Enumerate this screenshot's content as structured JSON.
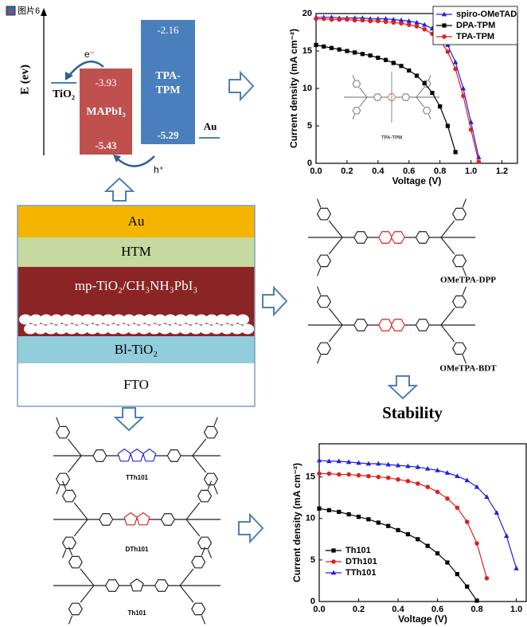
{
  "energy_diagram": {
    "icon_label": "图片6",
    "axis_label": "E (ev)",
    "electron": "e⁻",
    "hole": "h⁺",
    "tio2": "TiO₂",
    "mapbi3": {
      "name": "MAPbI₃",
      "lumo": "-3.93",
      "homo": "-5.43"
    },
    "tpa_tpm": {
      "name_line1": "TPA-",
      "name_line2": "TPM",
      "lumo": "-2.16",
      "homo": "-5.29"
    },
    "au": "Au"
  },
  "device_stack": {
    "layers": [
      "Au",
      "HTM",
      "mp-TiO₂/CH₃NH₃PbI₃",
      "Bl-TiO₂",
      "FTO"
    ]
  },
  "molecules": {
    "inset": "TPA-TPM",
    "top_right": [
      "OMeTPA-DPP",
      "OMeTPA-BDT"
    ],
    "bottom_left": [
      "TTh101",
      "DTh101",
      "Th101"
    ]
  },
  "stability": "Stability",
  "chart_data": [
    {
      "type": "line",
      "xlabel": "Voltage (V)",
      "ylabel": "Current density (mA cm⁻²)",
      "x": [
        0,
        0.05,
        0.1,
        0.15,
        0.2,
        0.25,
        0.3,
        0.35,
        0.4,
        0.45,
        0.5,
        0.55,
        0.6,
        0.65,
        0.7,
        0.75,
        0.8,
        0.85,
        0.9,
        0.95,
        1.0,
        1.05
      ],
      "xlim": [
        0,
        1.3
      ],
      "ylim": [
        0,
        20
      ],
      "xticks": [
        {
          "value": 0,
          "label": "0.0"
        },
        0.2,
        0.4,
        0.6,
        0.8,
        {
          "value": 1,
          "label": "1.0"
        },
        1.2
      ],
      "yticks": [
        0,
        5,
        10,
        15,
        20
      ],
      "legend": "upper right",
      "series": [
        {
          "name": "spiro-OMeTAD",
          "color": "#1f1fe0",
          "marker": "triangle",
          "values": [
            19.5,
            19.5,
            19.5,
            19.4,
            19.4,
            19.4,
            19.4,
            19.3,
            19.3,
            19.3,
            19.2,
            19.1,
            19.0,
            18.8,
            18.5,
            18.0,
            17.2,
            15.8,
            13.5,
            10.0,
            5.5,
            0.8
          ]
        },
        {
          "name": "DPA-TPM",
          "color": "#000000",
          "marker": "square",
          "values": [
            15.8,
            15.6,
            15.4,
            15.2,
            15.0,
            14.8,
            14.6,
            14.4,
            14.1,
            13.8,
            13.4,
            13.0,
            12.4,
            11.7,
            10.7,
            9.4,
            7.6,
            5.0,
            1.5,
            null,
            null,
            null
          ]
        },
        {
          "name": "TPA-TPM",
          "color": "#e02020",
          "marker": "circle",
          "values": [
            19.3,
            19.3,
            19.2,
            19.2,
            19.2,
            19.1,
            19.1,
            19.0,
            19.0,
            18.9,
            18.8,
            18.7,
            18.5,
            18.3,
            17.9,
            17.3,
            16.4,
            14.9,
            12.6,
            9.0,
            4.5,
            0.2
          ]
        }
      ]
    },
    {
      "type": "line",
      "xlabel": "Voltage (V)",
      "ylabel": "Current density (mA cm⁻²)",
      "x": [
        0,
        0.05,
        0.1,
        0.15,
        0.2,
        0.25,
        0.3,
        0.35,
        0.4,
        0.45,
        0.5,
        0.55,
        0.6,
        0.65,
        0.7,
        0.75,
        0.8,
        0.85,
        0.9,
        0.95,
        1.0
      ],
      "xlim": [
        0,
        1.05
      ],
      "ylim": [
        0,
        19
      ],
      "xticks": [
        {
          "value": 0,
          "label": "0.0"
        },
        0.2,
        0.4,
        0.6,
        0.8,
        {
          "value": 1,
          "label": "1.0"
        }
      ],
      "yticks": [
        0,
        5,
        10,
        15
      ],
      "legend": "lower left",
      "series": [
        {
          "name": "Th101",
          "color": "#000000",
          "marker": "square",
          "values": [
            11.2,
            11.0,
            10.8,
            10.5,
            10.2,
            9.9,
            9.5,
            9.1,
            8.6,
            8.1,
            7.5,
            6.7,
            5.8,
            4.7,
            3.3,
            1.8,
            0.1,
            null,
            null,
            null,
            null
          ]
        },
        {
          "name": "DTh101",
          "color": "#e02020",
          "marker": "circle",
          "values": [
            15.4,
            15.4,
            15.3,
            15.3,
            15.2,
            15.1,
            15.0,
            14.9,
            14.7,
            14.5,
            14.2,
            13.8,
            13.2,
            12.4,
            11.3,
            9.6,
            7.0,
            2.8,
            null,
            null,
            null
          ]
        },
        {
          "name": "TTh101",
          "color": "#1f1fe0",
          "marker": "triangle",
          "values": [
            17.0,
            16.9,
            16.9,
            16.8,
            16.7,
            16.6,
            16.6,
            16.5,
            16.4,
            16.3,
            16.2,
            16.0,
            15.8,
            15.5,
            15.1,
            14.6,
            13.8,
            12.6,
            10.7,
            7.9,
            4.0
          ]
        }
      ]
    }
  ]
}
